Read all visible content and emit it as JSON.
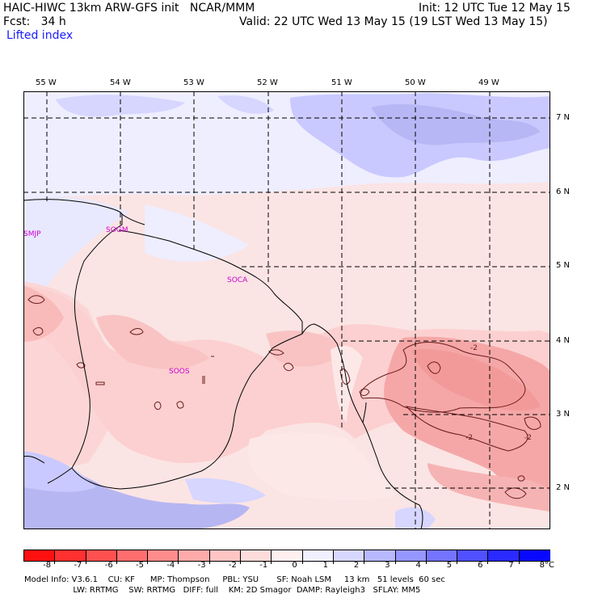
{
  "header": {
    "line1_left": "HAIC-HIWC 13km ARW-GFS init   NCAR/MMM",
    "line1_right": "Init: 12 UTC Tue 12 May 15",
    "line2_left": "Fcst:   34 h",
    "line2_right": "Valid: 22 UTC Wed 13 May 15 (19 LST Wed 13 May 15)",
    "field_name": "Lifted index"
  },
  "map": {
    "lon_labels": [
      "55 W",
      "54 W",
      "53 W",
      "52 W",
      "51 W",
      "50 W",
      "49 W"
    ],
    "lat_labels": [
      "7 N",
      "6 N",
      "5 N",
      "4 N",
      "3 N",
      "2 N"
    ],
    "stations": [
      "SMJP",
      "SOGM",
      "SOCA",
      "SOOS"
    ],
    "contour_labels": [
      "-2",
      "-2",
      "-2"
    ]
  },
  "colorbar": {
    "labels": [
      "-8",
      "-7",
      "-6",
      "-5",
      "-4",
      "-3",
      "-2",
      "-1",
      "0",
      "1",
      "2",
      "3",
      "4",
      "5",
      "6",
      "7",
      "8"
    ],
    "unit": "°C",
    "colors": [
      "#ff1010",
      "#ff3030",
      "#ff5050",
      "#ff6e6e",
      "#ff8c8c",
      "#ffaaaa",
      "#ffc4c4",
      "#ffdcdc",
      "#ffefef",
      "#f0f0ff",
      "#d8d8ff",
      "#b8b8ff",
      "#9696ff",
      "#7474ff",
      "#5050ff",
      "#2a2aff",
      "#0808ff"
    ]
  },
  "footer": {
    "line1": "Model Info: V3.6.1    CU: KF      MP: Thompson     PBL: YSU       SF: Noah LSM     13 km   51 levels  60 sec",
    "line2": "                   LW: RRTMG    SW: RRTMG   DIFF: full    KM: 2D Smagor  DAMP: Rayleigh3   SFLAY: MM5"
  }
}
